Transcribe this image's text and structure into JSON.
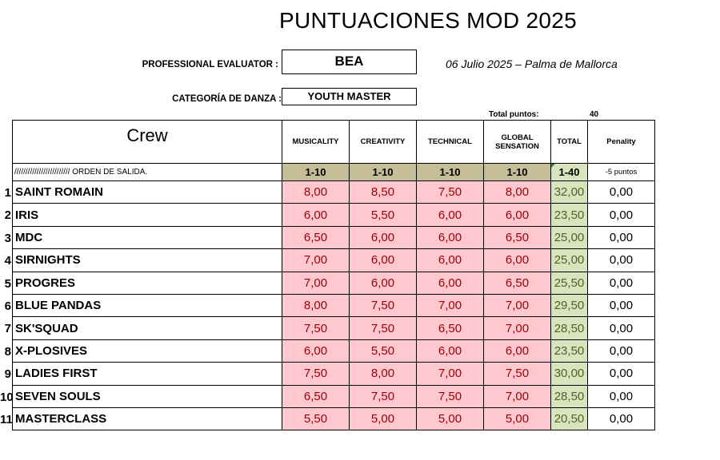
{
  "title": "PUNTUACIONES MOD 2025",
  "evaluator_label": "PROFESSIONAL EVALUATOR :",
  "evaluator": "BEA",
  "date_place": "06 Julio 2025 – Palma de Mallorca",
  "category_label": "CATEGORÍA DE DANZA :",
  "category": "YOUTH MASTER",
  "total_puntos_label": "Total puntos:",
  "total_puntos_value": "40",
  "headers": {
    "crew": "Crew",
    "musicality": "MUSICALITY",
    "creativity": "CREATIVITY",
    "technical": "TECHNICAL",
    "global": "GLOBAL SENSATION",
    "total": "TOTAL",
    "penality": "Penality"
  },
  "order_label": "/////////////////////////  ORDEN DE SALIDA.",
  "ranges": {
    "musicality": "1-10",
    "creativity": "1-10",
    "technical": "1-10",
    "global": "1-10",
    "total": "1-40",
    "penality": "-5 puntos"
  },
  "rows": [
    {
      "n": "1",
      "crew": "SAINT ROMAIN",
      "musicality": "8,00",
      "creativity": "8,50",
      "technical": "7,50",
      "global": "8,00",
      "total": "32,00",
      "penality": "0,00"
    },
    {
      "n": "2",
      "crew": "IRIS",
      "musicality": "6,00",
      "creativity": "5,50",
      "technical": "6,00",
      "global": "6,00",
      "total": "23,50",
      "penality": "0,00"
    },
    {
      "n": "3",
      "crew": "MDC",
      "musicality": "6,50",
      "creativity": "6,00",
      "technical": "6,00",
      "global": "6,50",
      "total": "25,00",
      "penality": "0,00"
    },
    {
      "n": "4",
      "crew": "SIRNIGHTS",
      "musicality": "7,00",
      "creativity": "6,00",
      "technical": "6,00",
      "global": "6,00",
      "total": "25,00",
      "penality": "0,00"
    },
    {
      "n": "5",
      "crew": "PROGRES",
      "musicality": "7,00",
      "creativity": "6,00",
      "technical": "6,00",
      "global": "6,50",
      "total": "25,50",
      "penality": "0,00"
    },
    {
      "n": "6",
      "crew": "BLUE PANDAS",
      "musicality": "8,00",
      "creativity": "7,50",
      "technical": "7,00",
      "global": "7,00",
      "total": "29,50",
      "penality": "0,00"
    },
    {
      "n": "7",
      "crew": "SK'SQUAD",
      "musicality": "7,50",
      "creativity": "7,50",
      "technical": "6,50",
      "global": "7,00",
      "total": "28,50",
      "penality": "0,00"
    },
    {
      "n": "8",
      "crew": "X-PLOSIVES",
      "musicality": "6,00",
      "creativity": "5,50",
      "technical": "6,00",
      "global": "6,00",
      "total": "23,50",
      "penality": "0,00"
    },
    {
      "n": "9",
      "crew": "LADIES FIRST",
      "musicality": "7,50",
      "creativity": "8,00",
      "technical": "7,00",
      "global": "7,50",
      "total": "30,00",
      "penality": "0,00"
    },
    {
      "n": "10",
      "crew": "SEVEN SOULS",
      "musicality": "6,50",
      "creativity": "7,50",
      "technical": "7,50",
      "global": "7,00",
      "total": "28,50",
      "penality": "0,00"
    },
    {
      "n": "11",
      "crew": "MASTERCLASS",
      "musicality": "5,50",
      "creativity": "5,00",
      "technical": "5,00",
      "global": "5,00",
      "total": "20,50",
      "penality": "0,00"
    }
  ],
  "colors": {
    "score_fill": "#ffc7ce",
    "score_text": "#9c0006",
    "total_fill": "#d8e4bc",
    "range_fill": "#c4bd97"
  }
}
